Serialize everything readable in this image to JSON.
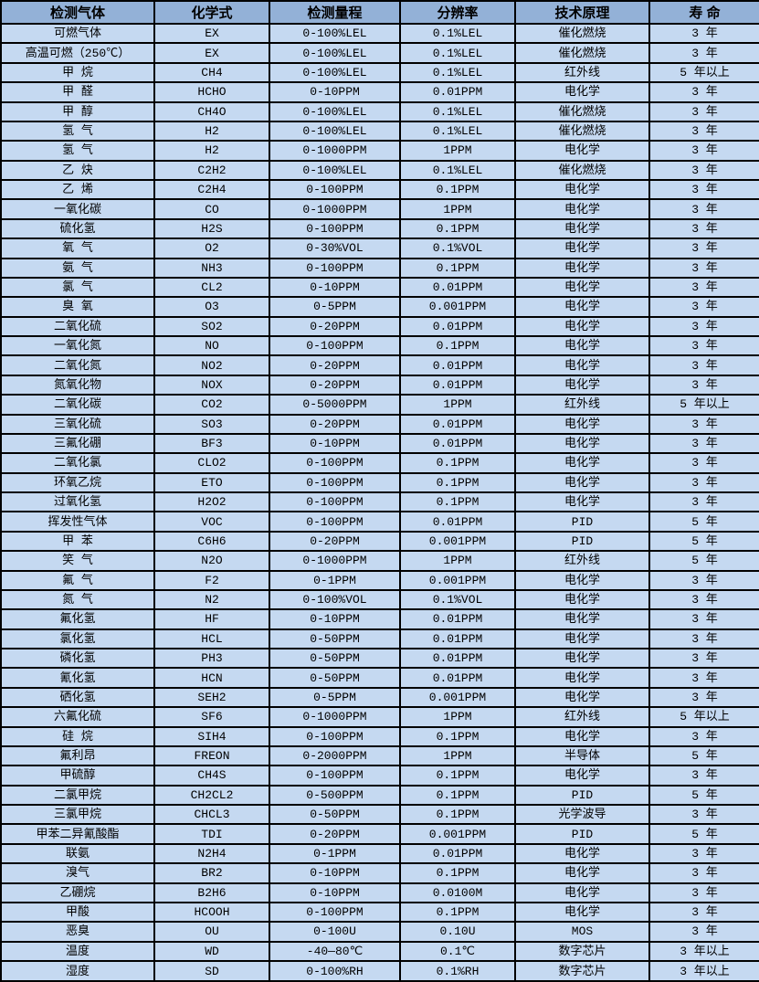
{
  "colors": {
    "header_bg": "#93b1d7",
    "row_bg": "#c5d9f1",
    "border": "#000000",
    "text": "#000000"
  },
  "table": {
    "columns": [
      {
        "key": "gas",
        "label": "检测气体"
      },
      {
        "key": "formula",
        "label": "化学式"
      },
      {
        "key": "range",
        "label": "检测量程"
      },
      {
        "key": "resolution",
        "label": "分辨率"
      },
      {
        "key": "principle",
        "label": "技术原理"
      },
      {
        "key": "lifespan",
        "label": "寿 命"
      }
    ],
    "rows": [
      [
        "可燃气体",
        "EX",
        "0-100%LEL",
        "0.1%LEL",
        "催化燃烧",
        "3 年"
      ],
      [
        "高温可燃（250℃）",
        "EX",
        "0-100%LEL",
        "0.1%LEL",
        "催化燃烧",
        "3 年"
      ],
      [
        "甲 烷",
        "CH4",
        "0-100%LEL",
        "0.1%LEL",
        "红外线",
        "5 年以上"
      ],
      [
        "甲 醛",
        "HCHO",
        "0-10PPM",
        "0.01PPM",
        "电化学",
        "3 年"
      ],
      [
        "甲 醇",
        "CH4O",
        "0-100%LEL",
        "0.1%LEL",
        "催化燃烧",
        "3 年"
      ],
      [
        "氢 气",
        "H2",
        "0-100%LEL",
        "0.1%LEL",
        "催化燃烧",
        "3 年"
      ],
      [
        "氢 气",
        "H2",
        "0-1000PPM",
        "1PPM",
        "电化学",
        "3 年"
      ],
      [
        "乙 炔",
        "C2H2",
        "0-100%LEL",
        "0.1%LEL",
        "催化燃烧",
        "3 年"
      ],
      [
        "乙 烯",
        "C2H4",
        "0-100PPM",
        "0.1PPM",
        "电化学",
        "3 年"
      ],
      [
        "一氧化碳",
        "CO",
        "0-1000PPM",
        "1PPM",
        "电化学",
        "3 年"
      ],
      [
        "硫化氢",
        "H2S",
        "0-100PPM",
        "0.1PPM",
        "电化学",
        "3 年"
      ],
      [
        "氧 气",
        "O2",
        "0-30%VOL",
        "0.1%VOL",
        "电化学",
        "3 年"
      ],
      [
        "氨 气",
        "NH3",
        "0-100PPM",
        "0.1PPM",
        "电化学",
        "3 年"
      ],
      [
        "氯 气",
        "CL2",
        "0-10PPM",
        "0.01PPM",
        "电化学",
        "3 年"
      ],
      [
        "臭 氧",
        "O3",
        "0-5PPM",
        "0.001PPM",
        "电化学",
        "3 年"
      ],
      [
        "二氧化硫",
        "SO2",
        "0-20PPM",
        "0.01PPM",
        "电化学",
        "3 年"
      ],
      [
        "一氧化氮",
        "NO",
        "0-100PPM",
        "0.1PPM",
        "电化学",
        "3 年"
      ],
      [
        "二氧化氮",
        "NO2",
        "0-20PPM",
        "0.01PPM",
        "电化学",
        "3 年"
      ],
      [
        "氮氧化物",
        "NOX",
        "0-20PPM",
        "0.01PPM",
        "电化学",
        "3 年"
      ],
      [
        "二氧化碳",
        "CO2",
        "0-5000PPM",
        "1PPM",
        "红外线",
        "5 年以上"
      ],
      [
        "三氧化硫",
        "SO3",
        "0-20PPM",
        "0.01PPM",
        "电化学",
        "3 年"
      ],
      [
        "三氟化硼",
        "BF3",
        "0-10PPM",
        "0.01PPM",
        "电化学",
        "3 年"
      ],
      [
        "二氧化氯",
        "CLO2",
        "0-100PPM",
        "0.1PPM",
        "电化学",
        "3 年"
      ],
      [
        "环氧乙烷",
        "ETO",
        "0-100PPM",
        "0.1PPM",
        "电化学",
        "3 年"
      ],
      [
        "过氧化氢",
        "H2O2",
        "0-100PPM",
        "0.1PPM",
        "电化学",
        "3 年"
      ],
      [
        "挥发性气体",
        "VOC",
        "0-100PPM",
        "0.01PPM",
        "PID",
        "5 年"
      ],
      [
        "甲 苯",
        "C6H6",
        "0-20PPM",
        "0.001PPM",
        "PID",
        "5 年"
      ],
      [
        "笑 气",
        "N2O",
        "0-1000PPM",
        "1PPM",
        "红外线",
        "5 年"
      ],
      [
        "氟 气",
        "F2",
        "0-1PPM",
        "0.001PPM",
        "电化学",
        "3 年"
      ],
      [
        "氮 气",
        "N2",
        "0-100%VOL",
        "0.1%VOL",
        "电化学",
        "3 年"
      ],
      [
        "氟化氢",
        "HF",
        "0-10PPM",
        "0.01PPM",
        "电化学",
        "3 年"
      ],
      [
        "氯化氢",
        "HCL",
        "0-50PPM",
        "0.01PPM",
        "电化学",
        "3 年"
      ],
      [
        "磷化氢",
        "PH3",
        "0-50PPM",
        "0.01PPM",
        "电化学",
        "3 年"
      ],
      [
        "氰化氢",
        "HCN",
        "0-50PPM",
        "0.01PPM",
        "电化学",
        "3 年"
      ],
      [
        "硒化氢",
        "SEH2",
        "0-5PPM",
        "0.001PPM",
        "电化学",
        "3 年"
      ],
      [
        "六氟化硫",
        "SF6",
        "0-1000PPM",
        "1PPM",
        "红外线",
        "5 年以上"
      ],
      [
        "硅 烷",
        "SIH4",
        "0-100PPM",
        "0.1PPM",
        "电化学",
        "3 年"
      ],
      [
        "氟利昂",
        "FREON",
        "0-2000PPM",
        "1PPM",
        "半导体",
        "5 年"
      ],
      [
        "甲硫醇",
        "CH4S",
        "0-100PPM",
        "0.1PPM",
        "电化学",
        "3 年"
      ],
      [
        "二氯甲烷",
        "CH2CL2",
        "0-500PPM",
        "0.1PPM",
        "PID",
        "5 年"
      ],
      [
        "三氯甲烷",
        "CHCL3",
        "0-50PPM",
        "0.1PPM",
        "光学波导",
        "3 年"
      ],
      [
        "甲苯二异氰酸酯",
        "TDI",
        "0-20PPM",
        "0.001PPM",
        "PID",
        "5 年"
      ],
      [
        "联氨",
        "N2H4",
        "0-1PPM",
        "0.01PPM",
        "电化学",
        "3 年"
      ],
      [
        "溴气",
        "BR2",
        "0-10PPM",
        "0.1PPM",
        "电化学",
        "3 年"
      ],
      [
        "乙硼烷",
        "B2H6",
        "0-10PPM",
        "0.0100M",
        "电化学",
        "3 年"
      ],
      [
        "甲酸",
        "HCOOH",
        "0-100PPM",
        "0.1PPM",
        "电化学",
        "3 年"
      ],
      [
        "恶臭",
        "OU",
        "0-100U",
        "0.10U",
        "MOS",
        "3 年"
      ],
      [
        "温度",
        "WD",
        "-40—80℃",
        "0.1℃",
        "数字芯片",
        "3 年以上"
      ],
      [
        "湿度",
        "SD",
        "0-100%RH",
        "0.1%RH",
        "数字芯片",
        "3 年以上"
      ]
    ]
  }
}
